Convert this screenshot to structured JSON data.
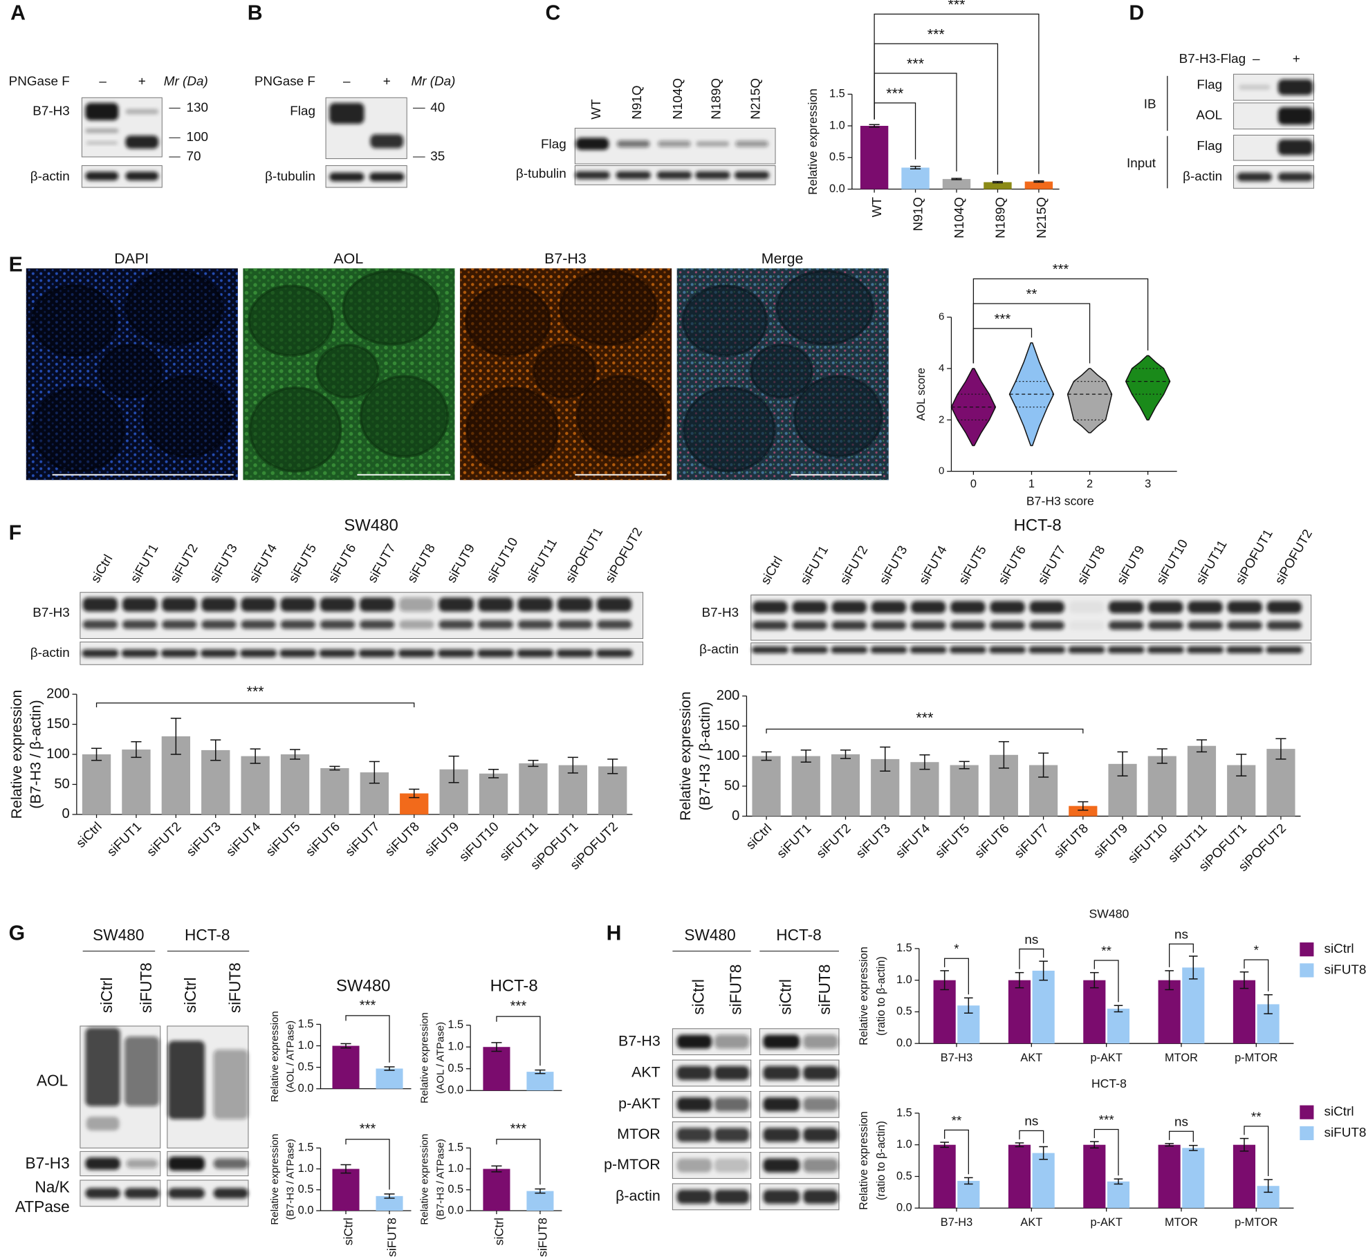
{
  "panel_labels": [
    "A",
    "B",
    "C",
    "D",
    "E",
    "F",
    "G",
    "H"
  ],
  "panel_a": {
    "treatment": "PNGase F",
    "lanes": [
      "–",
      "+"
    ],
    "mr": "Mr (Da)",
    "rows": [
      "B7-H3",
      "β-actin"
    ],
    "markers": [
      130,
      100,
      70
    ]
  },
  "panel_b": {
    "treatment": "PNGase F",
    "lanes": [
      "–",
      "+"
    ],
    "mr": "Mr (Da)",
    "rows": [
      "Flag",
      "β-tubulin"
    ],
    "markers": [
      40,
      35
    ]
  },
  "panel_c": {
    "rows": [
      "Flag",
      "β-tubulin"
    ]
  },
  "panel_d": {
    "construct": "B7-H3-Flag",
    "lanes": [
      "–",
      "+"
    ],
    "groups": [
      "IB",
      "Input"
    ],
    "rows": [
      "Flag",
      "AOL",
      "Flag",
      "β-actin"
    ]
  },
  "panel_e": {
    "channels": [
      "DAPI",
      "AOL",
      "B7-H3",
      "Merge"
    ]
  },
  "panel_f": {
    "rows": [
      "B7-H3",
      "β-actin"
    ]
  },
  "panel_g": {
    "cell_lines": [
      "SW480",
      "HCT-8"
    ],
    "lanes": [
      "siCtrl",
      "siFUT8"
    ],
    "rows": [
      "AOL",
      "B7-H3"
    ],
    "loading_control": [
      "Na/K",
      "ATPase"
    ]
  },
  "panel_h": {
    "cell_lines": [
      "SW480",
      "HCT-8"
    ],
    "lanes": [
      "siCtrl",
      "siFUT8"
    ],
    "rows": [
      "B7-H3",
      "AKT",
      "p-AKT",
      "MTOR",
      "p-MTOR",
      "β-actin"
    ]
  },
  "chart_data": [
    {
      "type": "bar",
      "ylabel": "Relative expression",
      "categories": [
        "WT",
        "N91Q",
        "N104Q",
        "N189Q",
        "N215Q"
      ],
      "values": [
        1.0,
        0.34,
        0.16,
        0.11,
        0.12
      ],
      "errors": [
        0.02,
        0.02,
        0.01,
        0.01,
        0.01
      ],
      "colors": [
        "#7b0c6e",
        "#9ccaf4",
        "#a8a8a8",
        "#8b8a16",
        "#f26a1b"
      ],
      "ylim": [
        0,
        1.5
      ],
      "yticks": [
        {
          "value": 0,
          "label": "0.0"
        },
        {
          "value": 0.5,
          "label": "0.5"
        },
        {
          "value": 1,
          "label": "1.0"
        },
        {
          "value": 1.5,
          "label": "1.5"
        }
      ],
      "significance": [
        "***",
        "***",
        "***",
        "***"
      ]
    },
    {
      "type": "violin",
      "ylabel": "AOL score",
      "xlabel": "B7-H3 score",
      "categories": [
        0,
        1,
        2,
        3
      ],
      "values": [
        2.5,
        3,
        3,
        3.5
      ],
      "q1": [
        2,
        2.5,
        2,
        3
      ],
      "q3": [
        3,
        3.5,
        3.5,
        4
      ],
      "min": [
        1,
        1,
        1.5,
        2
      ],
      "max": [
        4,
        5,
        4,
        4.5
      ],
      "colors": [
        "#7b0c6e",
        "#8ec2f3",
        "#a8a8a8",
        "#1a8a1a"
      ],
      "ylim": [
        0,
        6
      ],
      "yticks": [
        0,
        2,
        4,
        6
      ],
      "significance": [
        "***",
        "**",
        "***"
      ]
    },
    {
      "type": "bar",
      "title": "SW480",
      "ylabel": [
        "Relative expression",
        "(B7-H3 / β-actin)"
      ],
      "categories": [
        "siCtrl",
        "siFUT1",
        "siFUT2",
        "siFUT3",
        "siFUT4",
        "siFUT5",
        "siFUT6",
        "siFUT7",
        "siFUT8",
        "siFUT9",
        "siFUT10",
        "siFUT11",
        "siPOFUT1",
        "siPOFUT2"
      ],
      "values": [
        100,
        108,
        130,
        107,
        97,
        100,
        77,
        70,
        35,
        75,
        68,
        85,
        82,
        80
      ],
      "errors": [
        10,
        13,
        30,
        17,
        12,
        8,
        3,
        18,
        7,
        22,
        7,
        5,
        13,
        12
      ],
      "colors": [
        "#a6a6a6",
        "#a6a6a6",
        "#a6a6a6",
        "#a6a6a6",
        "#a6a6a6",
        "#a6a6a6",
        "#a6a6a6",
        "#a6a6a6",
        "#f26a1b",
        "#a6a6a6",
        "#a6a6a6",
        "#a6a6a6",
        "#a6a6a6",
        "#a6a6a6"
      ],
      "ylim": [
        0,
        200
      ],
      "yticks": [
        0,
        50,
        100,
        150,
        200
      ],
      "significance": [
        "***"
      ]
    },
    {
      "type": "bar",
      "title": "HCT-8",
      "ylabel": [
        "Relative expression",
        "(B7-H3 / β-actin)"
      ],
      "categories": [
        "siCtrl",
        "siFUT1",
        "siFUT2",
        "siFUT3",
        "siFUT4",
        "siFUT5",
        "siFUT6",
        "siFUT7",
        "siFUT8",
        "siFUT9",
        "siFUT10",
        "siFUT11",
        "siPOFUT1",
        "siPOFUT2"
      ],
      "values": [
        100,
        100,
        103,
        95,
        90,
        85,
        102,
        85,
        17,
        87,
        100,
        117,
        85,
        112
      ],
      "errors": [
        7,
        10,
        7,
        20,
        12,
        6,
        22,
        20,
        7,
        20,
        12,
        10,
        18,
        17
      ],
      "colors": [
        "#a6a6a6",
        "#a6a6a6",
        "#a6a6a6",
        "#a6a6a6",
        "#a6a6a6",
        "#a6a6a6",
        "#a6a6a6",
        "#a6a6a6",
        "#f26a1b",
        "#a6a6a6",
        "#a6a6a6",
        "#a6a6a6",
        "#a6a6a6",
        "#a6a6a6"
      ],
      "ylim": [
        0,
        200
      ],
      "yticks": [
        0,
        50,
        100,
        150,
        200
      ],
      "significance": [
        "***"
      ]
    },
    {
      "type": "bar",
      "title": "SW480",
      "ylabel": [
        "Relative expression",
        "(AOL / ATPase)"
      ],
      "values": [
        1.0,
        0.47
      ],
      "errors": [
        0.05,
        0.04
      ],
      "colors": [
        "#7b0c6e",
        "#9ccaf4"
      ],
      "ylim": [
        0,
        1.5
      ],
      "yticks": [
        {
          "value": 0,
          "label": "0.0"
        },
        {
          "value": 0.5,
          "label": "0.5"
        },
        {
          "value": 1,
          "label": "1.0"
        },
        {
          "value": 1.5,
          "label": "1.5"
        }
      ],
      "significance": [
        "***"
      ]
    },
    {
      "type": "bar",
      "title": "HCT-8",
      "ylabel": [
        "Relative expression",
        "(AOL / ATPase)"
      ],
      "values": [
        1.0,
        0.43
      ],
      "errors": [
        0.1,
        0.04
      ],
      "colors": [
        "#7b0c6e",
        "#9ccaf4"
      ],
      "ylim": [
        0,
        1.5
      ],
      "yticks": [
        {
          "value": 0,
          "label": "0.0"
        },
        {
          "value": 0.5,
          "label": "0.5"
        },
        {
          "value": 1,
          "label": "1.0"
        },
        {
          "value": 1.5,
          "label": "1.5"
        }
      ],
      "significance": [
        "***"
      ]
    },
    {
      "type": "bar",
      "ylabel": [
        "Relative expression",
        "(B7-H3 / ATPase)"
      ],
      "categories": [
        "siCtrl",
        "siFUT8"
      ],
      "values": [
        1.0,
        0.35
      ],
      "errors": [
        0.1,
        0.05
      ],
      "colors": [
        "#7b0c6e",
        "#9ccaf4"
      ],
      "ylim": [
        0,
        1.5
      ],
      "yticks": [
        {
          "value": 0,
          "label": "0.0"
        },
        {
          "value": 0.5,
          "label": "0.5"
        },
        {
          "value": 1,
          "label": "1.0"
        },
        {
          "value": 1.5,
          "label": "1.5"
        }
      ],
      "significance": [
        "***"
      ]
    },
    {
      "type": "bar",
      "ylabel": [
        "Relative expression",
        "(B7-H3 / ATPase)"
      ],
      "categories": [
        "siCtrl",
        "siFUT8"
      ],
      "values": [
        1.0,
        0.47
      ],
      "errors": [
        0.07,
        0.05
      ],
      "colors": [
        "#7b0c6e",
        "#9ccaf4"
      ],
      "ylim": [
        0,
        1.5
      ],
      "yticks": [
        {
          "value": 0,
          "label": "0.0"
        },
        {
          "value": 0.5,
          "label": "0.5"
        },
        {
          "value": 1,
          "label": "1.0"
        },
        {
          "value": 1.5,
          "label": "1.5"
        }
      ],
      "significance": [
        "***"
      ]
    },
    {
      "type": "bar",
      "title": "SW480",
      "ylabel": [
        "Relative expression",
        "(ratio to β-actin)"
      ],
      "categories": [
        "B7-H3",
        "AKT",
        "p-AKT",
        "MTOR",
        "p-MTOR"
      ],
      "series": [
        {
          "name": "siCtrl",
          "color": "#7b0c6e",
          "values": [
            1,
            1,
            1,
            1,
            1
          ],
          "errors": [
            0.15,
            0.12,
            0.12,
            0.15,
            0.13
          ]
        },
        {
          "name": "siFUT8",
          "color": "#9ccaf4",
          "values": [
            0.6,
            1.15,
            0.55,
            1.2,
            0.62
          ],
          "errors": [
            0.12,
            0.15,
            0.05,
            0.18,
            0.15
          ]
        }
      ],
      "ylim": [
        0,
        1.5
      ],
      "yticks": [
        {
          "value": 0,
          "label": "0.0"
        },
        {
          "value": 0.5,
          "label": "0.5"
        },
        {
          "value": 1,
          "label": "1.0"
        },
        {
          "value": 1.5,
          "label": "1.5"
        }
      ],
      "significance": [
        "*",
        "ns",
        "**",
        "ns",
        "*"
      ]
    },
    {
      "type": "bar",
      "title": "HCT-8",
      "ylabel": [
        "Relative expression",
        "(ratio to β-actin)"
      ],
      "categories": [
        "B7-H3",
        "AKT",
        "p-AKT",
        "MTOR",
        "p-MTOR"
      ],
      "series": [
        {
          "name": "siCtrl",
          "color": "#7b0c6e",
          "values": [
            1,
            1,
            1,
            1,
            1
          ],
          "errors": [
            0.04,
            0.03,
            0.05,
            0.02,
            0.1
          ]
        },
        {
          "name": "siFUT8",
          "color": "#9ccaf4",
          "values": [
            0.43,
            0.87,
            0.42,
            0.95,
            0.35
          ],
          "errors": [
            0.05,
            0.1,
            0.04,
            0.04,
            0.1
          ]
        }
      ],
      "ylim": [
        0,
        1.5
      ],
      "yticks": [
        {
          "value": 0,
          "label": "0.0"
        },
        {
          "value": 0.5,
          "label": "0.5"
        },
        {
          "value": 1,
          "label": "1.0"
        },
        {
          "value": 1.5,
          "label": "1.5"
        }
      ],
      "significance": [
        "**",
        "ns",
        "***",
        "ns",
        "**"
      ]
    }
  ]
}
